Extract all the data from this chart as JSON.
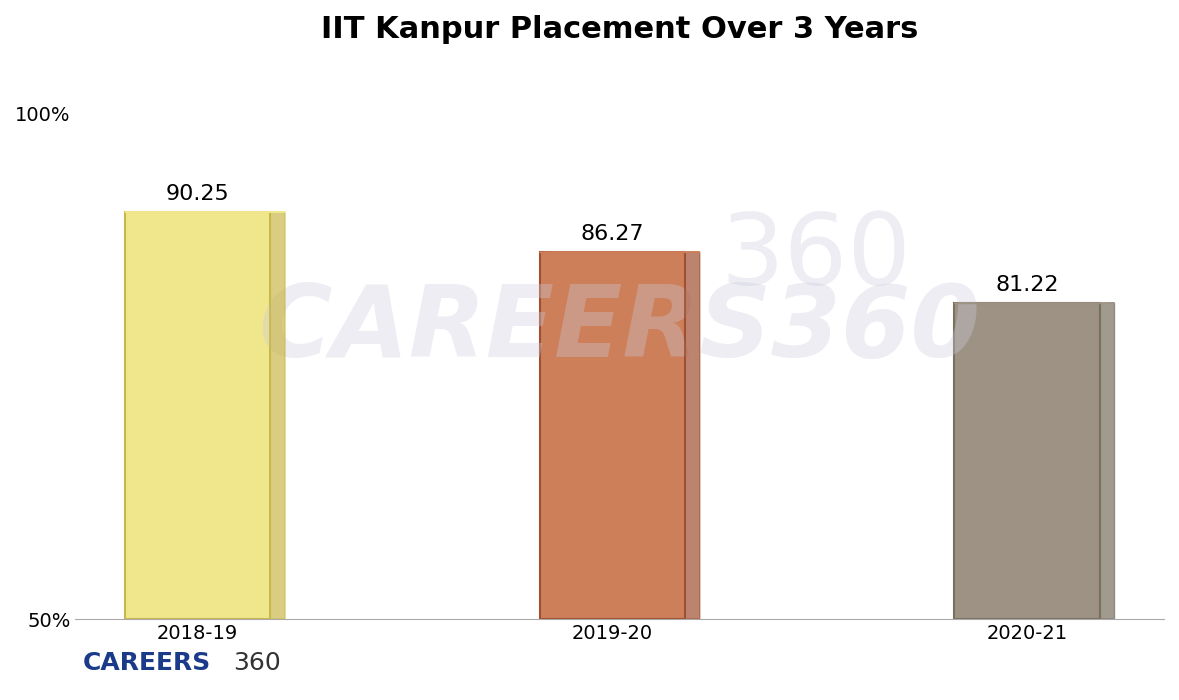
{
  "title": "IIT Kanpur Placement Over 3 Years",
  "categories": [
    "2018-19",
    "2019-20",
    "2020-21"
  ],
  "values": [
    90.25,
    86.27,
    81.22
  ],
  "bar_colors": [
    "#F0E68C",
    "#CD7F5A",
    "#9E9284"
  ],
  "bar_edge_colors": [
    "#C8B84A",
    "#A05030",
    "#7A7060"
  ],
  "ylim": [
    50,
    105
  ],
  "yticks": [
    50,
    100
  ],
  "ytick_labels": [
    "50%",
    "100%"
  ],
  "background_color": "#FFFFFF",
  "watermark_text": "CAREERS360",
  "watermark_color": "#CCCCDD",
  "watermark_alpha": 0.35,
  "title_fontsize": 22,
  "label_fontsize": 16,
  "tick_fontsize": 14,
  "bar_width": 0.35,
  "careers_text_blue": "#1A3A8A",
  "careers_text_360": "#333333"
}
